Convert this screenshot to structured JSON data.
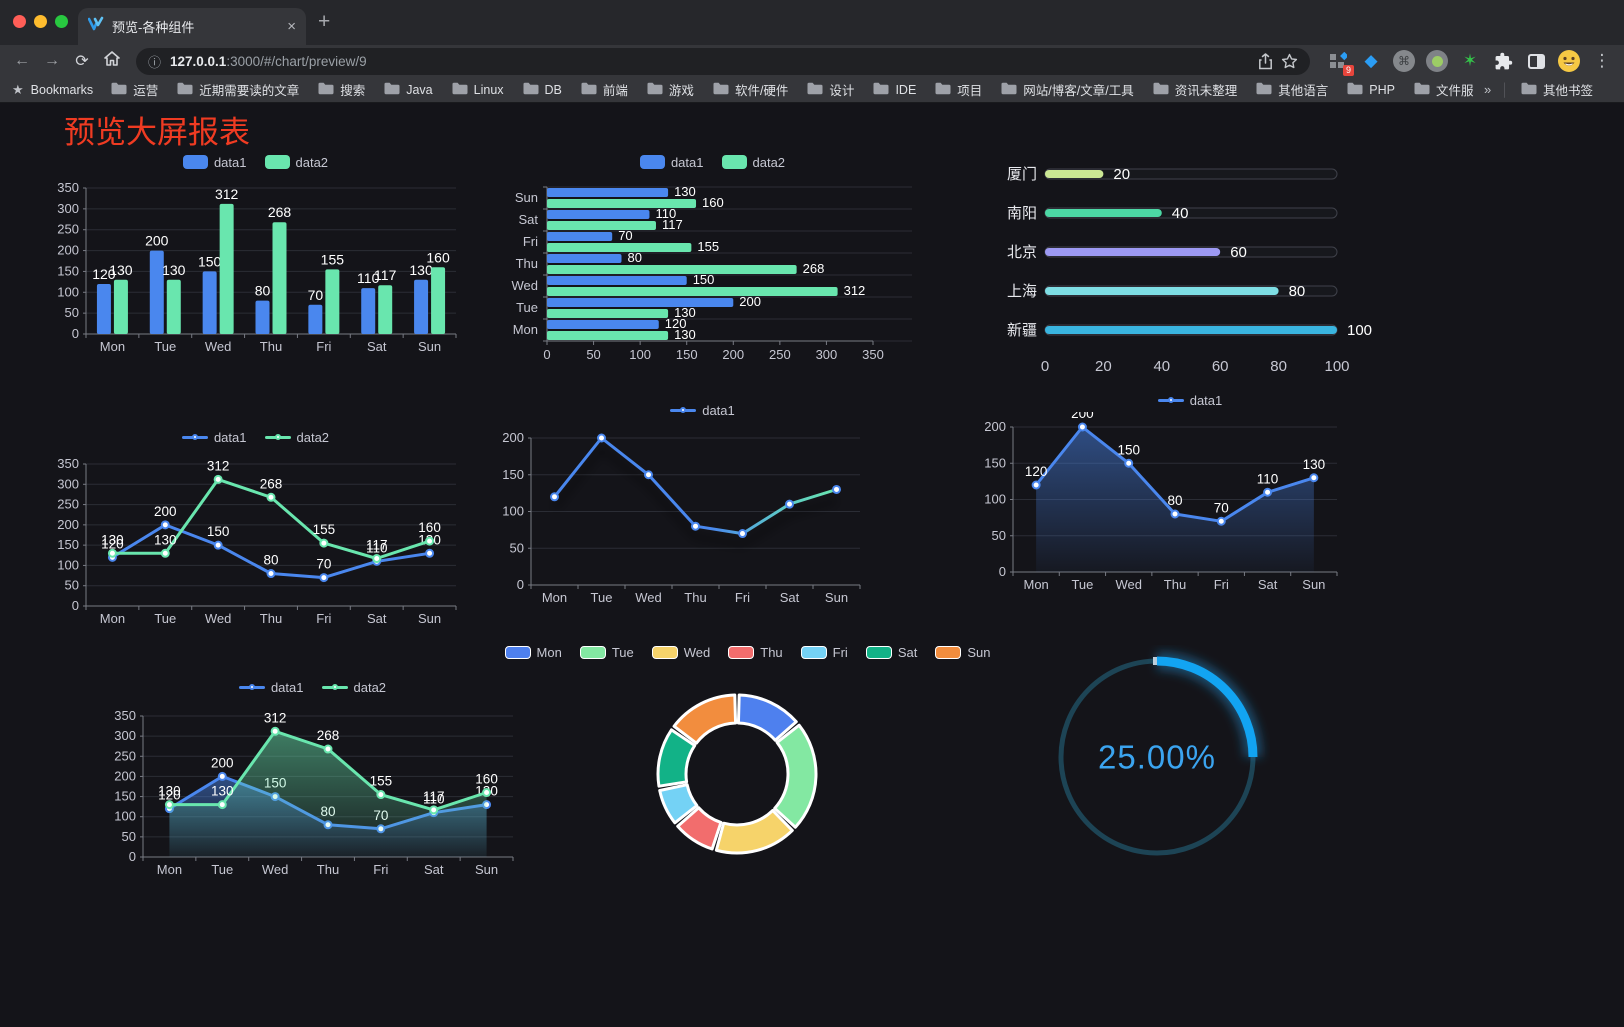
{
  "browser": {
    "tab_title": "预览-各种组件",
    "new_tab_icon": "+",
    "url_host": "127.0.0.1",
    "url_rest": ":3000/#/chart/preview/9",
    "extension_badge": "9",
    "icons": {
      "back": "←",
      "forward": "→",
      "reload": "⟳",
      "info": "ⓘ",
      "command": "⌘",
      "diamond": "◆",
      "green_star": "✶",
      "menu_dots": "⋮",
      "bookmark_star": "★",
      "tab_close": "×"
    },
    "bookmarks_label": "Bookmarks",
    "bookmark_folders": [
      "运营",
      "近期需要读的文章",
      "搜索",
      "Java",
      "Linux",
      "DB",
      "前端",
      "游戏",
      "软件/硬件",
      "设计",
      "IDE",
      "项目",
      "网站/博客/文章/工具",
      "资讯未整理",
      "其他语言",
      "PHP",
      "文件服务器"
    ],
    "overflow_chevron": "»",
    "other_bookmarks": "其他书签"
  },
  "page": {
    "title": "预览大屏报表",
    "title_color": "#ef3b22",
    "background": "#141419"
  },
  "theme": {
    "series_blue": "#4a87ee",
    "series_green": "#69e6ae",
    "axis_text": "#c6c7d2",
    "grid_line": "#2b2d35",
    "axis_line": "#787b84",
    "value_label": "#ffffff"
  },
  "chart_data": [
    {
      "type": "bar",
      "title": "",
      "xlabel": "",
      "ylabel": "",
      "categories": [
        "Mon",
        "Tue",
        "Wed",
        "Thu",
        "Fri",
        "Sat",
        "Sun"
      ],
      "series": [
        {
          "name": "data1",
          "color": "#4a87ee",
          "values": [
            120,
            200,
            150,
            80,
            70,
            110,
            130
          ]
        },
        {
          "name": "data2",
          "color": "#69e6ae",
          "values": [
            130,
            130,
            312,
            268,
            155,
            117,
            160
          ]
        }
      ],
      "ylim": [
        0,
        350
      ],
      "ytick": 50,
      "legend_position": "top",
      "value_labels": true
    },
    {
      "type": "hbar",
      "title": "",
      "categories": [
        "Mon",
        "Tue",
        "Wed",
        "Thu",
        "Fri",
        "Sat",
        "Sun"
      ],
      "series": [
        {
          "name": "data1",
          "color": "#4a87ee",
          "values": [
            120,
            200,
            150,
            80,
            70,
            110,
            130
          ]
        },
        {
          "name": "data2",
          "color": "#69e6ae",
          "values": [
            130,
            130,
            312,
            268,
            155,
            117,
            160
          ]
        }
      ],
      "xlim": [
        0,
        350
      ],
      "xtick": 50,
      "legend_position": "top",
      "value_labels": true
    },
    {
      "type": "capsule",
      "title": "",
      "rows": [
        {
          "label": "厦门",
          "value": 20,
          "color": "#cbe794"
        },
        {
          "label": "南阳",
          "value": 40,
          "color": "#4cd7a4"
        },
        {
          "label": "北京",
          "value": 60,
          "color": "#9d99f3"
        },
        {
          "label": "上海",
          "value": 80,
          "color": "#7edee4"
        },
        {
          "label": "新疆",
          "value": 100,
          "color": "#3ab5e0"
        }
      ],
      "xlim": [
        0,
        100
      ],
      "xticks": [
        0,
        20,
        40,
        60,
        80,
        100
      ]
    },
    {
      "type": "line",
      "title": "",
      "categories": [
        "Mon",
        "Tue",
        "Wed",
        "Thu",
        "Fri",
        "Sat",
        "Sun"
      ],
      "series": [
        {
          "name": "data1",
          "color": "#4a87ee",
          "values": [
            120,
            200,
            150,
            80,
            70,
            110,
            130
          ]
        },
        {
          "name": "data2",
          "color": "#69e6ae",
          "values": [
            130,
            130,
            312,
            268,
            155,
            117,
            160
          ]
        }
      ],
      "ylim": [
        0,
        350
      ],
      "ytick": 50,
      "legend_position": "top",
      "value_labels": true
    },
    {
      "type": "line",
      "title": "",
      "categories": [
        "Mon",
        "Tue",
        "Wed",
        "Thu",
        "Fri",
        "Sat",
        "Sun"
      ],
      "series": [
        {
          "name": "data1",
          "color": "#4a87ee",
          "gradient": [
            "#4a87ee",
            "#69e6ae"
          ],
          "values": [
            120,
            200,
            150,
            80,
            70,
            110,
            130
          ],
          "shadow": true
        }
      ],
      "ylim": [
        0,
        200
      ],
      "ytick": 50,
      "legend_position": "top",
      "value_labels": false
    },
    {
      "type": "line",
      "title": "",
      "categories": [
        "Mon",
        "Tue",
        "Wed",
        "Thu",
        "Fri",
        "Sat",
        "Sun"
      ],
      "series": [
        {
          "name": "data1",
          "color": "#4a87ee",
          "values": [
            120,
            200,
            150,
            80,
            70,
            110,
            130
          ],
          "area": true
        }
      ],
      "ylim": [
        0,
        200
      ],
      "ytick": 50,
      "legend_position": "top",
      "value_labels": true
    },
    {
      "type": "line",
      "title": "",
      "categories": [
        "Mon",
        "Tue",
        "Wed",
        "Thu",
        "Fri",
        "Sat",
        "Sun"
      ],
      "series": [
        {
          "name": "data1",
          "color": "#4a87ee",
          "values": [
            120,
            200,
            150,
            80,
            70,
            110,
            130
          ],
          "area": true
        },
        {
          "name": "data2",
          "color": "#69e6ae",
          "values": [
            130,
            130,
            312,
            268,
            155,
            117,
            160
          ],
          "area": true
        }
      ],
      "ylim": [
        0,
        350
      ],
      "ytick": 50,
      "legend_position": "top",
      "value_labels": true
    },
    {
      "type": "pie",
      "title": "",
      "donut": true,
      "legend_position": "top",
      "items": [
        {
          "label": "Mon",
          "value": 120,
          "color": "#4e80ee"
        },
        {
          "label": "Tue",
          "value": 200,
          "color": "#83e8a2"
        },
        {
          "label": "Wed",
          "value": 150,
          "color": "#f6d36a"
        },
        {
          "label": "Thu",
          "value": 80,
          "color": "#f26d6d"
        },
        {
          "label": "Fri",
          "value": 70,
          "color": "#74d2f5"
        },
        {
          "label": "Sat",
          "value": 110,
          "color": "#12b287"
        },
        {
          "label": "Sun",
          "value": 130,
          "color": "#f28d3e"
        }
      ]
    },
    {
      "type": "gauge",
      "title": "",
      "value_text": "25.00%",
      "percent": 25,
      "arc_color": "#12a4f2",
      "track_color": "#1d4455",
      "text_color": "#3ba4ef"
    }
  ]
}
